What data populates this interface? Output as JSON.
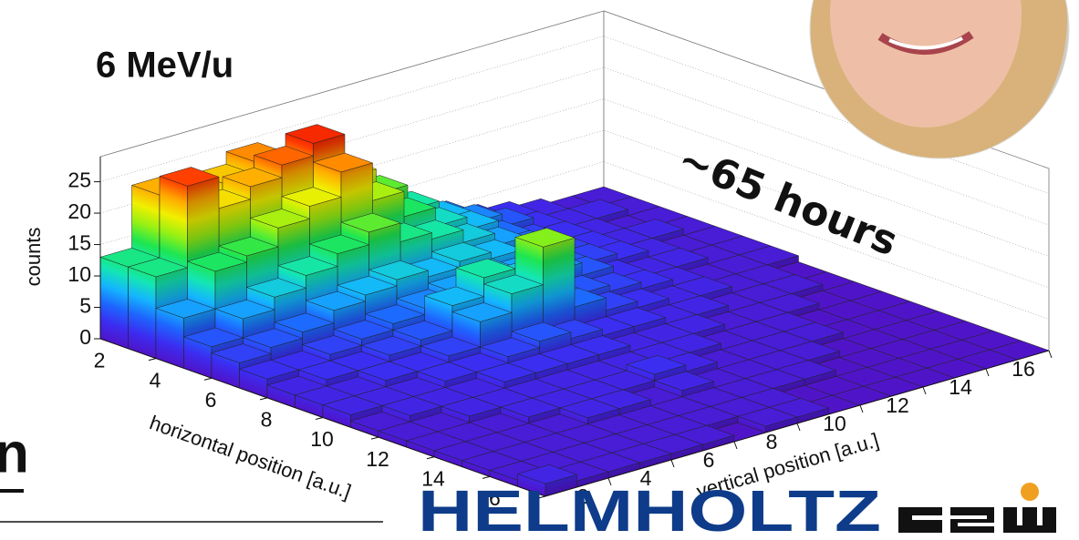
{
  "chart_data": {
    "type": "lego",
    "annotations": [
      "6 MeV/u",
      "~65 hours"
    ],
    "xlabel": "horizontal position [a.u.]",
    "ylabel": "vertical position [a.u.]",
    "zlabel": "counts",
    "xbins": [
      0,
      1,
      2,
      3,
      4,
      5,
      6,
      7,
      8,
      9,
      10,
      11,
      12,
      13,
      14,
      15,
      16
    ],
    "ybins": [
      0,
      1,
      2,
      3,
      4,
      5,
      6,
      7,
      8,
      9,
      10,
      11,
      12,
      13,
      14,
      15,
      16
    ],
    "xlim": [
      0,
      16
    ],
    "ylim": [
      0,
      16
    ],
    "zlim": [
      0,
      29
    ],
    "xticks": [
      2,
      4,
      6,
      8,
      10,
      12,
      14,
      16
    ],
    "yticks": [
      2,
      4,
      6,
      8,
      10,
      12,
      14,
      16
    ],
    "zticks": [
      0,
      5,
      10,
      15,
      20,
      25
    ],
    "grid": true,
    "palette": [
      "#5014c8",
      "#3c2cf0",
      "#1e64ff",
      "#14b4ff",
      "#14e6b4",
      "#1ee650",
      "#96f014",
      "#f0f000",
      "#ffaa00",
      "#ff3c00",
      "#e60000"
    ],
    "values": [
      [
        13,
        23,
        19,
        22,
        24,
        22,
        17,
        14,
        10,
        8,
        6,
        4,
        3,
        2,
        1,
        1
      ],
      [
        13,
        26,
        21,
        23,
        25,
        27,
        20,
        16,
        12,
        9,
        7,
        5,
        3,
        2,
        2,
        1
      ],
      [
        8,
        14,
        15,
        18,
        20,
        24,
        18,
        14,
        11,
        9,
        6,
        4,
        3,
        2,
        1,
        1
      ],
      [
        5,
        8,
        10,
        12,
        14,
        16,
        13,
        12,
        10,
        8,
        6,
        4,
        3,
        2,
        2,
        1
      ],
      [
        4,
        5,
        6,
        8,
        9,
        10,
        9,
        10,
        9,
        7,
        5,
        4,
        3,
        2,
        1,
        1
      ],
      [
        3,
        3,
        4,
        5,
        6,
        7,
        8,
        9,
        8,
        7,
        5,
        3,
        2,
        2,
        1,
        1
      ],
      [
        2,
        3,
        3,
        4,
        5,
        9,
        12,
        10,
        6,
        5,
        4,
        3,
        2,
        1,
        1,
        1
      ],
      [
        2,
        2,
        3,
        3,
        4,
        8,
        11,
        17,
        6,
        4,
        3,
        2,
        2,
        1,
        1,
        0
      ],
      [
        2,
        2,
        2,
        3,
        3,
        4,
        5,
        4,
        3,
        3,
        2,
        2,
        1,
        1,
        1,
        0
      ],
      [
        1,
        2,
        2,
        2,
        3,
        3,
        3,
        3,
        2,
        2,
        2,
        1,
        1,
        1,
        0,
        0
      ],
      [
        1,
        1,
        2,
        2,
        2,
        2,
        2,
        2,
        2,
        2,
        1,
        1,
        1,
        0,
        0,
        0
      ],
      [
        1,
        1,
        1,
        2,
        2,
        2,
        2,
        3,
        2,
        1,
        1,
        1,
        1,
        0,
        0,
        0
      ],
      [
        1,
        1,
        1,
        1,
        2,
        2,
        1,
        2,
        1,
        1,
        1,
        1,
        0,
        0,
        0,
        0
      ],
      [
        1,
        1,
        1,
        1,
        1,
        1,
        1,
        1,
        1,
        1,
        1,
        0,
        0,
        0,
        0,
        0
      ],
      [
        1,
        1,
        1,
        1,
        1,
        1,
        1,
        1,
        1,
        0,
        0,
        0,
        0,
        0,
        0,
        0
      ],
      [
        2,
        1,
        1,
        1,
        1,
        1,
        0,
        1,
        1,
        0,
        0,
        0,
        0,
        0,
        0,
        0
      ]
    ]
  },
  "slide": {
    "heading_fragment": "n",
    "logo_text": "HELMHOLTZ"
  }
}
